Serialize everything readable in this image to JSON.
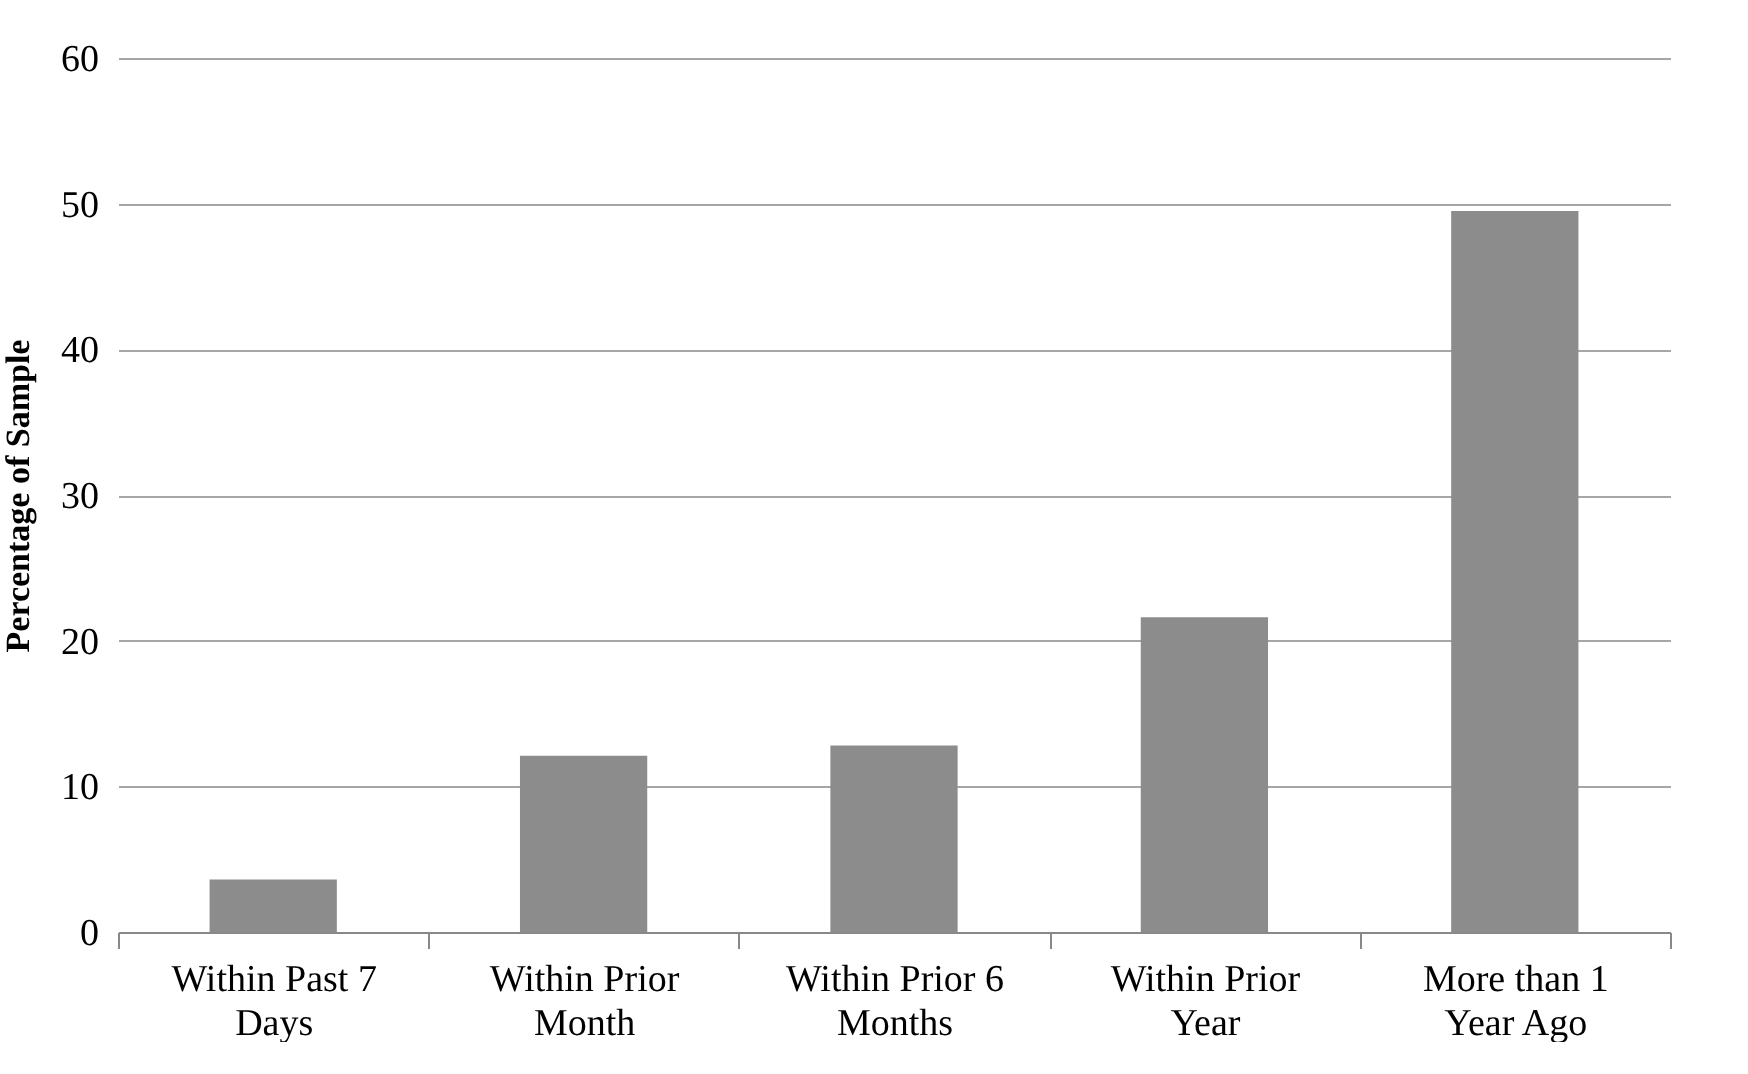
{
  "chart_data": {
    "type": "bar",
    "ylabel": "Percentage of Sample",
    "categories": [
      "Within Past 7 Days",
      "Within Prior Month",
      "Within Prior 6 Months",
      "Within Prior Year",
      "More than 1 Year Ago"
    ],
    "values": [
      3.6,
      12.1,
      12.8,
      21.6,
      49.5
    ],
    "color": "#8c8c8c",
    "ylim": [
      0,
      60
    ],
    "yticks": [
      0,
      10,
      20,
      30,
      40,
      50,
      60
    ],
    "grid": "y"
  }
}
